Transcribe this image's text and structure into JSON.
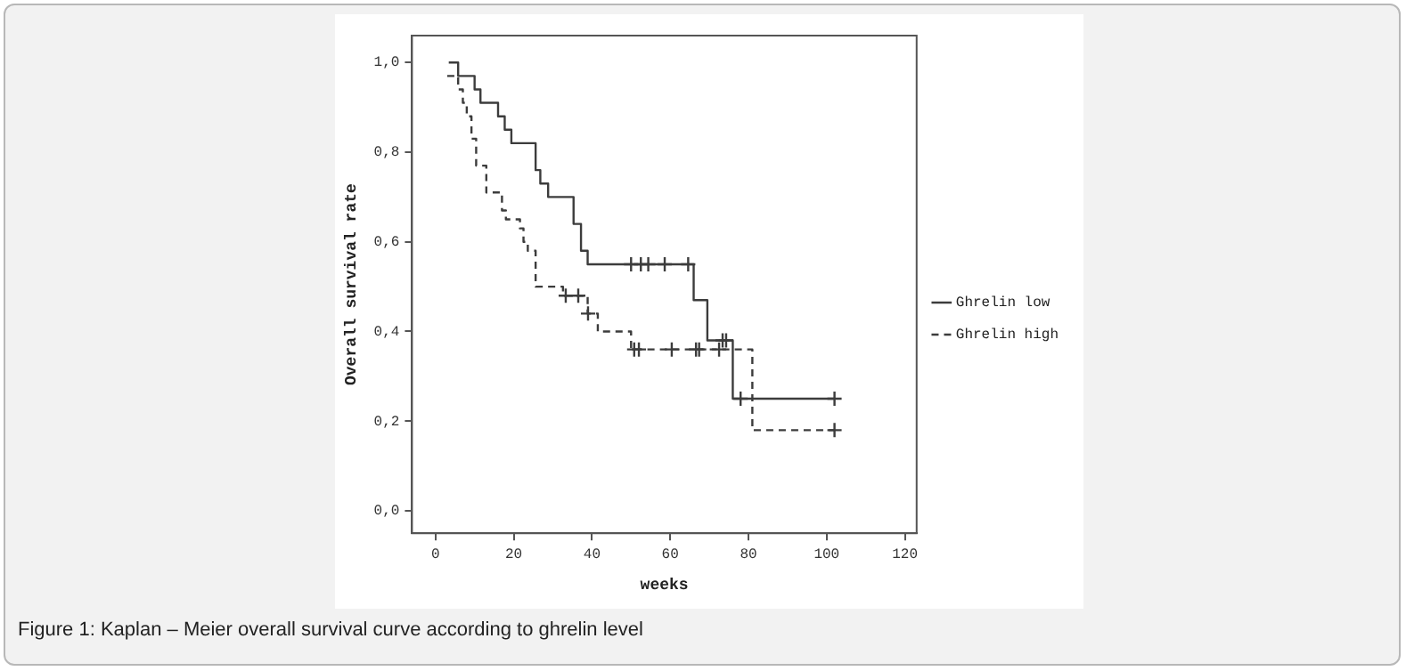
{
  "chart_data": {
    "type": "step",
    "xlabel": "weeks",
    "ylabel": "Overall survival rate",
    "xlim": [
      -6,
      123
    ],
    "xticks": [
      0,
      20,
      40,
      60,
      80,
      100,
      120
    ],
    "ylim": [
      -0.05,
      1.06
    ],
    "yticks": [
      {
        "value": 0,
        "label": "0,0"
      },
      {
        "value": 0.2,
        "label": "0,2"
      },
      {
        "value": 0.4,
        "label": "0,4"
      },
      {
        "value": 0.6,
        "label": "0,6"
      },
      {
        "value": 0.8,
        "label": "0,8"
      },
      {
        "value": 1,
        "label": "1,0"
      }
    ],
    "legend": "right",
    "series": [
      {
        "name": "Ghrelin low",
        "color": "#3c3c3c",
        "line_style": "solid",
        "x": [
          3.4,
          5.8,
          10,
          11.5,
          16,
          17.7,
          19.4,
          25.6,
          26.8,
          28.8,
          35.3,
          37.2,
          38.9,
          66,
          69.5,
          76,
          102
        ],
        "values": [
          1,
          0.97,
          0.94,
          0.91,
          0.88,
          0.85,
          0.82,
          0.76,
          0.73,
          0.7,
          0.64,
          0.58,
          0.55,
          0.47,
          0.38,
          0.25,
          0.25
        ]
      },
      {
        "name": "Ghrelin high",
        "color": "#3c3c3c",
        "line_style": "dashed",
        "x": [
          3,
          5.8,
          7,
          8,
          9.2,
          10.4,
          13,
          17,
          18,
          21.6,
          22.5,
          23.6,
          25.6,
          32.6,
          38.9,
          41.5,
          50,
          81,
          102
        ],
        "values": [
          0.97,
          0.94,
          0.91,
          0.88,
          0.83,
          0.77,
          0.71,
          0.67,
          0.65,
          0.63,
          0.6,
          0.58,
          0.5,
          0.48,
          0.44,
          0.4,
          0.36,
          0.18,
          0.18
        ]
      },
      {
        "type": "scatter",
        "marker": "cross",
        "color": "#3c3c3c",
        "x": [
          50,
          52.5,
          54.4,
          58.6,
          64.6,
          73.4,
          74.3,
          78,
          102
        ],
        "values": [
          0.55,
          0.55,
          0.55,
          0.55,
          0.55,
          0.38,
          0.38,
          0.25,
          0.25
        ]
      },
      {
        "type": "scatter",
        "marker": "cross",
        "color": "#3c3c3c",
        "x": [
          33.3,
          36.5,
          39,
          50.8,
          52,
          60.4,
          66.6,
          67.4,
          72.5,
          102
        ],
        "values": [
          0.48,
          0.48,
          0.44,
          0.36,
          0.36,
          0.36,
          0.36,
          0.36,
          0.36,
          0.18
        ]
      }
    ],
    "annotations": [
      "Figure 1: Kaplan – Meier overall survival curve according to ghrelin level"
    ]
  }
}
